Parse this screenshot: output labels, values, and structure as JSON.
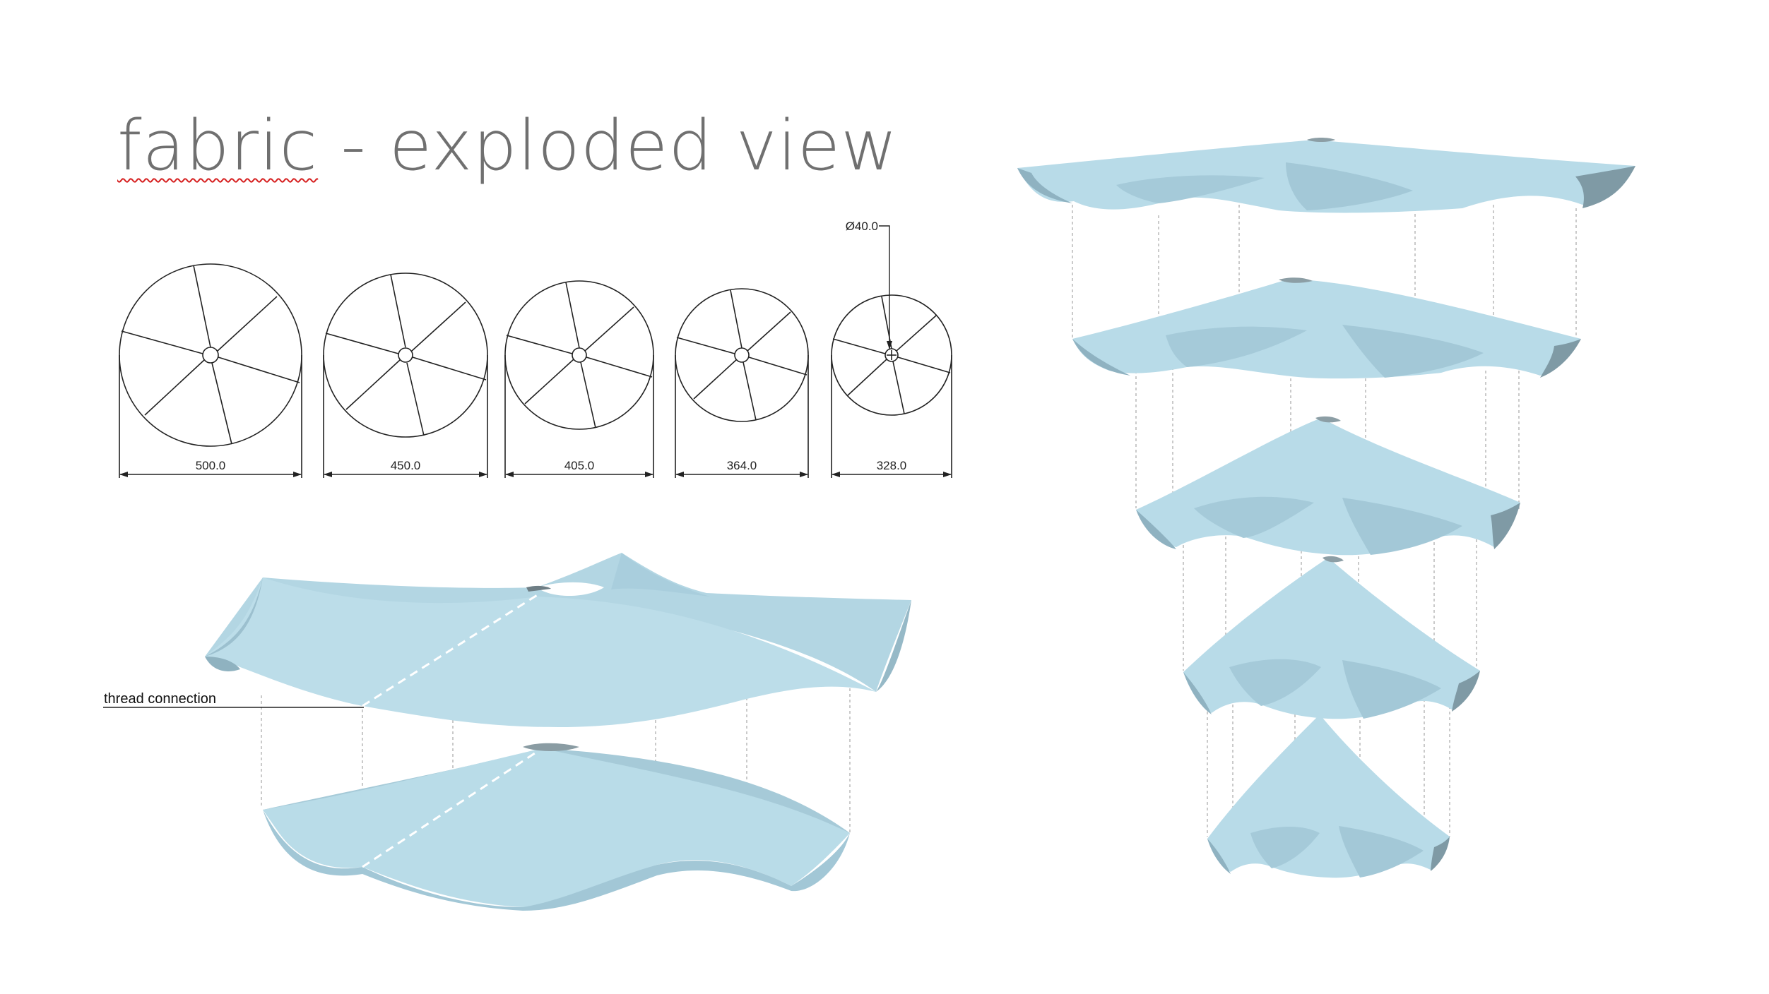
{
  "title": {
    "word1": "fabric",
    "rest": " - exploded view"
  },
  "profiles": [
    {
      "dimension": "500.0"
    },
    {
      "dimension": "450.0"
    },
    {
      "dimension": "405.0"
    },
    {
      "dimension": "364.0"
    },
    {
      "dimension": "328.0"
    }
  ],
  "hole_diameter": "Ø40.0",
  "callout": {
    "thread": "thread connection"
  },
  "colors": {
    "fabric": "#b6dae6",
    "fabric_dark": "#86aab9",
    "fabric_shadow": "#7d8d94",
    "title": "#707070"
  }
}
